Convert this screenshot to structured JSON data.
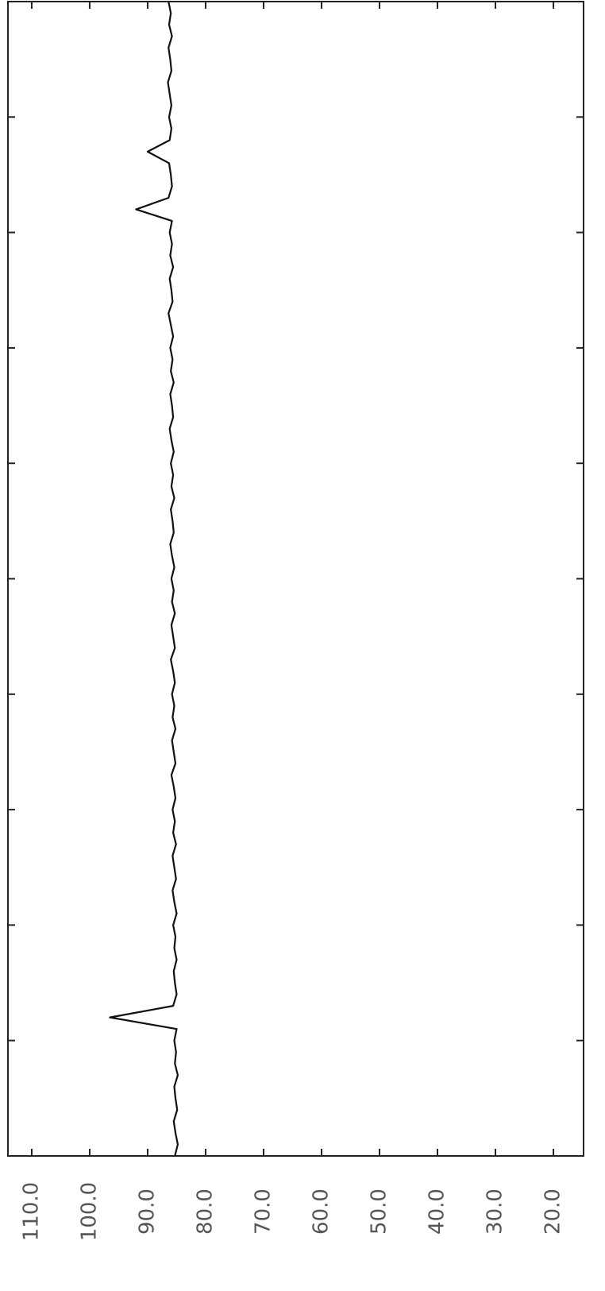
{
  "chart_data": {
    "type": "line",
    "x": [
      0,
      1,
      2,
      3,
      4,
      5,
      6,
      7,
      8,
      9,
      10,
      11,
      12,
      13,
      14,
      15,
      16,
      17,
      18,
      19,
      20,
      21,
      22,
      23,
      24,
      25,
      26,
      27,
      28,
      29,
      30,
      31,
      32,
      33,
      34,
      35,
      36,
      37,
      38,
      39,
      40,
      41,
      42,
      43,
      44,
      45,
      46,
      47,
      48,
      49,
      50,
      51,
      52,
      53,
      54,
      55,
      56,
      57,
      58,
      59,
      60,
      61,
      62,
      63,
      64,
      65,
      66,
      67,
      68,
      69,
      70,
      71,
      72,
      73,
      74,
      75,
      76,
      77,
      78,
      79,
      80,
      81,
      82,
      83,
      84,
      85,
      86,
      87,
      88,
      89,
      90,
      91,
      92,
      93,
      94,
      95,
      96,
      97,
      98,
      99,
      100
    ],
    "series": [
      {
        "color": "#111111",
        "values": [
          85.3,
          84.8,
          85.2,
          85.5,
          84.9,
          85.2,
          85.4,
          84.8,
          85.3,
          85.1,
          85.4,
          85.0,
          96.5,
          85.6,
          85.0,
          85.3,
          85.5,
          85.0,
          85.4,
          85.2,
          85.6,
          85.0,
          85.4,
          85.7,
          85.1,
          85.4,
          85.7,
          85.1,
          85.6,
          85.3,
          85.7,
          85.2,
          85.5,
          85.9,
          85.2,
          85.5,
          85.8,
          85.2,
          85.7,
          85.4,
          85.8,
          85.3,
          85.6,
          86.0,
          85.3,
          85.6,
          85.9,
          85.3,
          85.8,
          85.5,
          85.9,
          85.4,
          85.8,
          86.1,
          85.5,
          85.7,
          86.0,
          85.4,
          85.9,
          85.6,
          86.0,
          85.5,
          85.9,
          86.2,
          85.6,
          85.8,
          86.1,
          85.5,
          86.0,
          85.7,
          86.1,
          85.6,
          86.0,
          86.4,
          85.7,
          85.9,
          86.2,
          85.6,
          86.1,
          85.8,
          86.2,
          85.8,
          92.0,
          86.4,
          85.8,
          86.0,
          86.3,
          90.0,
          86.2,
          85.9,
          86.3,
          85.9,
          86.2,
          86.5,
          85.9,
          86.1,
          86.4,
          85.8,
          86.3,
          86.0,
          86.4
        ]
      }
    ],
    "xlim": [
      0,
      100
    ],
    "xticks": [
      0,
      10,
      20,
      30,
      40,
      50,
      60,
      70,
      80,
      90,
      100
    ],
    "ylim": [
      14.8,
      114.1
    ],
    "yticks": [
      {
        "value": 110,
        "label": "110.0"
      },
      {
        "value": 100,
        "label": "100.0"
      },
      {
        "value": 90,
        "label": "90.0"
      },
      {
        "value": 80,
        "label": "80.0"
      },
      {
        "value": 70,
        "label": "70.0"
      },
      {
        "value": 60,
        "label": "60.0"
      },
      {
        "value": 50,
        "label": "50.0"
      },
      {
        "value": 40,
        "label": "40.0"
      },
      {
        "value": 30,
        "label": "30.0"
      },
      {
        "value": 20,
        "label": "20.0"
      }
    ]
  }
}
